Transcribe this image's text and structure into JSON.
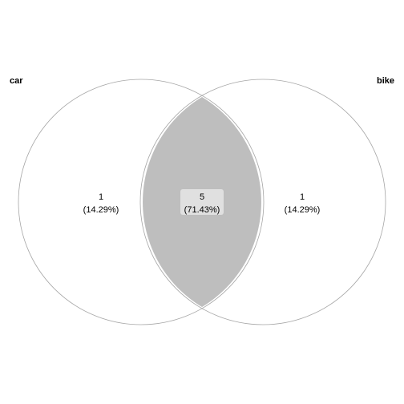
{
  "colors": {
    "background": "#ffffff",
    "intersection_fill": "#bebebe",
    "label_box_fill": "#e0e0e0",
    "circle_stroke": "#a6a6a6"
  },
  "sets": [
    {
      "name": "car"
    },
    {
      "name": "bike"
    }
  ],
  "regions": {
    "car_only": {
      "count": "1",
      "percent": "(14.29%)"
    },
    "both": {
      "count": "5",
      "percent": "(71.43%)"
    },
    "bike_only": {
      "count": "1",
      "percent": "(14.29%)"
    }
  }
}
